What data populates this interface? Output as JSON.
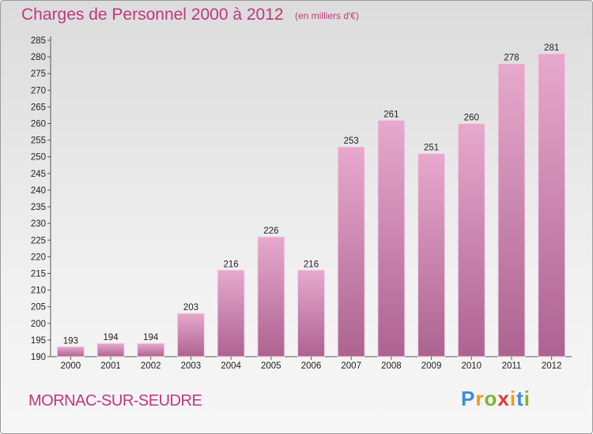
{
  "header": {
    "title": "Charges de Personnel 2000 à 2012",
    "subtitle": "(en milliers d'€)"
  },
  "footer": {
    "place": "MORNAC-SUR-SEUDRE",
    "logo_letters": [
      {
        "ch": "P",
        "color": "#3a8fd6"
      },
      {
        "ch": "r",
        "color": "#f29a1c"
      },
      {
        "ch": "o",
        "color": "#7ab829"
      },
      {
        "ch": "x",
        "color": "#e2382f"
      },
      {
        "ch": "i",
        "color": "#f29a1c"
      },
      {
        "ch": "t",
        "color": "#3a8fd6"
      },
      {
        "ch": "i",
        "color": "#7ab829"
      }
    ]
  },
  "colors": {
    "accent": "#c2367d",
    "bar_top": "#e7a9cd",
    "bar_bottom": "#ad6390"
  },
  "chart_data": {
    "type": "bar",
    "title": "Charges de Personnel 2000 à 2012",
    "subtitle": "(en milliers d'€)",
    "categories": [
      "2000",
      "2001",
      "2002",
      "2003",
      "2004",
      "2005",
      "2006",
      "2007",
      "2008",
      "2009",
      "2010",
      "2011",
      "2012"
    ],
    "values": [
      193,
      194,
      194,
      203,
      216,
      226,
      216,
      253,
      261,
      251,
      260,
      278,
      281
    ],
    "ylim": [
      190,
      285
    ],
    "yticks": [
      190,
      195,
      200,
      205,
      210,
      215,
      220,
      225,
      230,
      235,
      240,
      245,
      250,
      255,
      260,
      265,
      270,
      275,
      280,
      285
    ],
    "grid": false,
    "data_labels": true
  }
}
